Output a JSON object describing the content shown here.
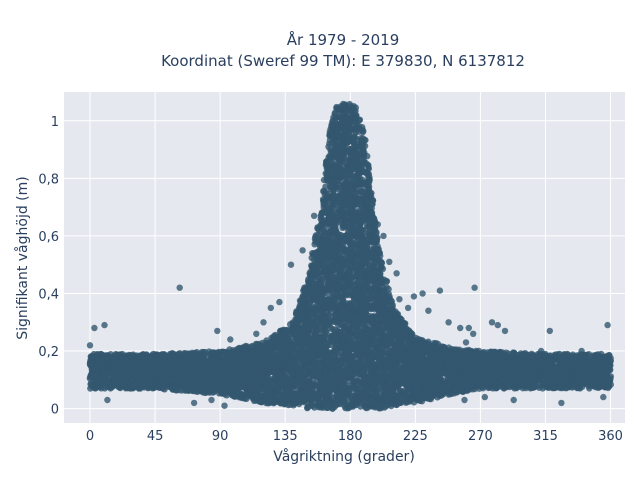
{
  "chart_data": {
    "type": "scatter",
    "title_line1": "År 1979 - 2019",
    "title_line2": "Koordinat (Sweref 99 TM): E 379830, N 6137812",
    "xlabel": "Vågriktning (grader)",
    "ylabel": "Signifikant våghöjd (m)",
    "xlim": [
      -18,
      370
    ],
    "ylim": [
      -0.05,
      1.1
    ],
    "x_ticks": [
      0,
      45,
      90,
      135,
      180,
      225,
      270,
      315,
      360
    ],
    "x_tick_labels": [
      "0",
      "45",
      "90",
      "135",
      "180",
      "225",
      "270",
      "315",
      "360"
    ],
    "y_ticks": [
      0,
      0.2,
      0.4,
      0.6,
      0.8,
      1
    ],
    "y_tick_labels": [
      "0",
      "0,2",
      "0,4",
      "0,6",
      "0,8",
      "1"
    ],
    "grid": true,
    "colors": {
      "plot_bg": "#e5e8ef",
      "grid": "#ffffff",
      "marker": "#33586f",
      "text": "#2a3f5f"
    },
    "envelope": {
      "x": [
        0,
        45,
        90,
        120,
        140,
        150,
        160,
        165,
        170,
        175,
        180,
        185,
        190,
        195,
        200,
        210,
        225,
        250,
        270,
        315,
        360
      ],
      "y_upper": [
        0.19,
        0.19,
        0.2,
        0.23,
        0.3,
        0.45,
        0.7,
        0.95,
        1.05,
        1.06,
        1.06,
        1.05,
        0.95,
        0.75,
        0.55,
        0.35,
        0.25,
        0.21,
        0.2,
        0.19,
        0.19
      ],
      "y_lower": [
        0.07,
        0.07,
        0.05,
        0.02,
        0.01,
        0,
        0,
        0,
        0,
        0,
        0,
        0,
        0,
        0,
        0,
        0.01,
        0.02,
        0.05,
        0.07,
        0.07,
        0.07
      ]
    },
    "outliers": [
      {
        "x": 0,
        "y": 0.22
      },
      {
        "x": 3,
        "y": 0.28
      },
      {
        "x": 10,
        "y": 0.29
      },
      {
        "x": 62,
        "y": 0.42
      },
      {
        "x": 88,
        "y": 0.27
      },
      {
        "x": 97,
        "y": 0.24
      },
      {
        "x": 115,
        "y": 0.26
      },
      {
        "x": 120,
        "y": 0.3
      },
      {
        "x": 125,
        "y": 0.35
      },
      {
        "x": 131,
        "y": 0.37
      },
      {
        "x": 139,
        "y": 0.5
      },
      {
        "x": 147,
        "y": 0.55
      },
      {
        "x": 155,
        "y": 0.67
      },
      {
        "x": 170,
        "y": 0.82
      },
      {
        "x": 199,
        "y": 0.64
      },
      {
        "x": 203,
        "y": 0.6
      },
      {
        "x": 207,
        "y": 0.51
      },
      {
        "x": 212,
        "y": 0.47
      },
      {
        "x": 214,
        "y": 0.38
      },
      {
        "x": 220,
        "y": 0.35
      },
      {
        "x": 224,
        "y": 0.39
      },
      {
        "x": 230,
        "y": 0.4
      },
      {
        "x": 234,
        "y": 0.34
      },
      {
        "x": 242,
        "y": 0.41
      },
      {
        "x": 248,
        "y": 0.3
      },
      {
        "x": 256,
        "y": 0.28
      },
      {
        "x": 260,
        "y": 0.23
      },
      {
        "x": 262,
        "y": 0.28
      },
      {
        "x": 265,
        "y": 0.26
      },
      {
        "x": 266,
        "y": 0.42
      },
      {
        "x": 278,
        "y": 0.3
      },
      {
        "x": 282,
        "y": 0.29
      },
      {
        "x": 287,
        "y": 0.27
      },
      {
        "x": 312,
        "y": 0.2
      },
      {
        "x": 318,
        "y": 0.27
      },
      {
        "x": 340,
        "y": 0.2
      },
      {
        "x": 358,
        "y": 0.29
      },
      {
        "x": 12,
        "y": 0.03
      },
      {
        "x": 72,
        "y": 0.02
      },
      {
        "x": 84,
        "y": 0.03
      },
      {
        "x": 93,
        "y": 0.01
      },
      {
        "x": 259,
        "y": 0.03
      },
      {
        "x": 273,
        "y": 0.04
      },
      {
        "x": 293,
        "y": 0.03
      },
      {
        "x": 326,
        "y": 0.02
      },
      {
        "x": 355,
        "y": 0.04
      }
    ]
  }
}
